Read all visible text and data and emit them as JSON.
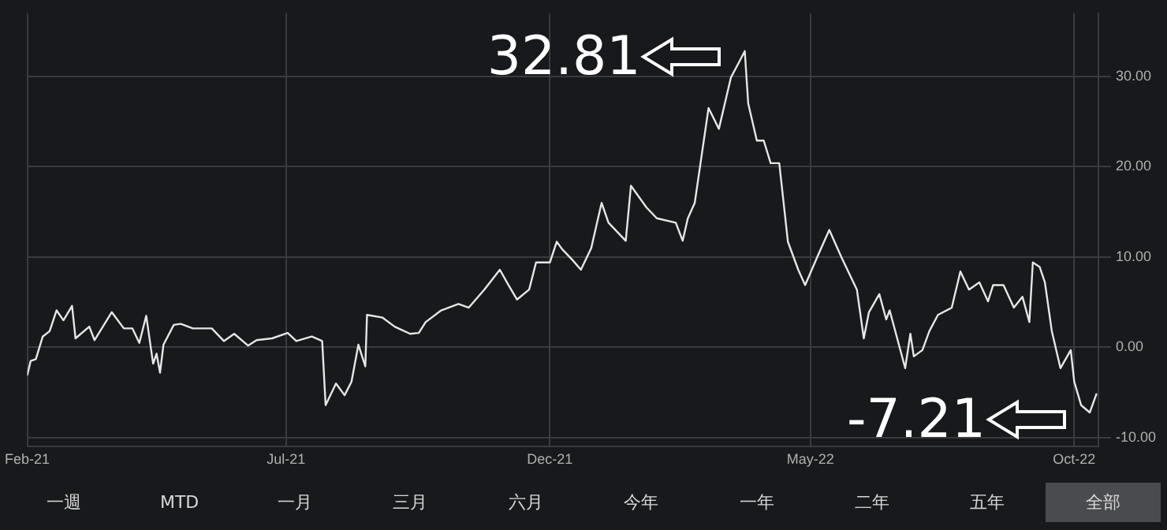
{
  "chart_data": {
    "type": "line",
    "x": [
      "2021-02-01",
      "2021-02-03",
      "2021-02-06",
      "2021-02-10",
      "2021-02-14",
      "2021-02-18",
      "2021-02-22",
      "2021-02-27",
      "2021-03-01",
      "2021-03-09",
      "2021-03-12",
      "2021-03-22",
      "2021-03-29",
      "2021-04-03",
      "2021-04-07",
      "2021-04-11",
      "2021-04-15",
      "2021-04-17",
      "2021-04-19",
      "2021-04-21",
      "2021-04-27",
      "2021-05-01",
      "2021-05-08",
      "2021-05-19",
      "2021-05-26",
      "2021-06-01",
      "2021-06-09",
      "2021-06-14",
      "2021-06-23",
      "2021-07-02",
      "2021-07-07",
      "2021-07-16",
      "2021-07-22",
      "2021-07-24",
      "2021-07-30",
      "2021-08-04",
      "2021-08-08",
      "2021-08-12",
      "2021-08-16",
      "2021-08-17",
      "2021-08-26",
      "2021-09-02",
      "2021-09-11",
      "2021-09-16",
      "2021-09-20",
      "2021-09-29",
      "2021-10-09",
      "2021-10-15",
      "2021-10-24",
      "2021-11-02",
      "2021-11-07",
      "2021-11-12",
      "2021-11-19",
      "2021-11-23",
      "2021-12-01",
      "2021-12-05",
      "2021-12-08",
      "2021-12-14",
      "2021-12-19",
      "2021-12-25",
      "2021-12-31",
      "2022-01-04",
      "2022-01-14",
      "2022-01-17",
      "2022-01-26",
      "2022-02-01",
      "2022-02-12",
      "2022-02-16",
      "2022-02-19",
      "2022-02-23",
      "2022-03-03",
      "2022-03-09",
      "2022-03-16",
      "2022-03-21",
      "2022-03-24",
      "2022-03-26",
      "2022-03-31",
      "2022-04-04",
      "2022-04-08",
      "2022-04-13",
      "2022-04-18",
      "2022-04-24",
      "2022-04-28",
      "2022-05-05",
      "2022-05-12",
      "2022-05-19",
      "2022-05-28",
      "2022-06-01",
      "2022-06-04",
      "2022-06-10",
      "2022-06-14",
      "2022-06-16",
      "2022-06-25",
      "2022-06-28",
      "2022-06-30",
      "2022-07-05",
      "2022-07-09",
      "2022-07-14",
      "2022-07-22",
      "2022-07-27",
      "2022-08-01",
      "2022-08-07",
      "2022-08-12",
      "2022-08-15",
      "2022-08-21",
      "2022-08-27",
      "2022-09-01",
      "2022-09-05",
      "2022-09-07",
      "2022-09-11",
      "2022-09-14",
      "2022-09-18",
      "2022-09-23",
      "2022-09-29",
      "2022-10-01",
      "2022-10-05",
      "2022-10-10",
      "2022-10-14"
    ],
    "values": [
      -3.1,
      -1.5,
      -1.3,
      1.2,
      1.8,
      4.1,
      3.0,
      4.6,
      1.0,
      2.3,
      0.8,
      3.9,
      2.1,
      2.1,
      0.5,
      3.5,
      -1.8,
      -0.7,
      -2.8,
      0.3,
      2.5,
      2.6,
      2.1,
      2.1,
      0.7,
      1.5,
      0.2,
      0.8,
      1.0,
      1.6,
      0.7,
      1.2,
      0.7,
      -6.4,
      -4.0,
      -5.3,
      -3.8,
      0.3,
      -2.1,
      3.6,
      3.3,
      2.3,
      1.5,
      1.6,
      2.8,
      4.1,
      4.8,
      4.4,
      6.4,
      8.6,
      6.9,
      5.3,
      6.4,
      9.4,
      9.4,
      11.7,
      10.9,
      9.7,
      8.6,
      11.0,
      16.0,
      13.8,
      11.8,
      17.9,
      15.5,
      14.3,
      13.8,
      11.8,
      14.3,
      16.0,
      26.5,
      24.2,
      29.9,
      31.7,
      32.81,
      27.0,
      22.9,
      22.9,
      20.4,
      20.4,
      11.7,
      8.6,
      6.9,
      10.0,
      13.0,
      10.0,
      6.4,
      1.0,
      3.9,
      5.9,
      3.1,
      4.1,
      -2.3,
      1.5,
      -1.0,
      -0.3,
      1.8,
      3.6,
      4.4,
      8.4,
      6.4,
      7.2,
      5.1,
      6.9,
      6.9,
      4.4,
      5.6,
      2.8,
      9.4,
      8.9,
      7.2,
      1.8,
      -2.3,
      -0.3,
      -3.8,
      -6.4,
      -7.21,
      -5.1
    ],
    "color": "#e6e6e6",
    "xlim": [
      "2021-02-01",
      "2022-10-15"
    ],
    "xticks": [
      {
        "value": "2021-02-01",
        "label": "Feb-21"
      },
      {
        "value": "2021-07-01",
        "label": "Jul-21"
      },
      {
        "value": "2021-12-01",
        "label": "Dec-21"
      },
      {
        "value": "2022-05-01",
        "label": "May-22"
      },
      {
        "value": "2022-10-01",
        "label": "Oct-22"
      }
    ],
    "ylim": [
      -11,
      37
    ],
    "yticks": [
      {
        "value": -10,
        "label": "-10.00"
      },
      {
        "value": 0,
        "label": "0.00"
      },
      {
        "value": 10,
        "label": "10.00"
      },
      {
        "value": 20,
        "label": "20.00"
      },
      {
        "value": 30,
        "label": "30.00"
      }
    ],
    "grid": true,
    "legend": false,
    "marker": "none",
    "line_style": "solid",
    "annotations": [
      {
        "text": "32.81",
        "x": "2022-03-24",
        "y": 32.81
      },
      {
        "text": "-7.21",
        "x": "2022-10-10",
        "y": -7.21
      },
      "一週",
      "MTD",
      "一月",
      "三月",
      "六月",
      "今年",
      "一年",
      "二年",
      "五年",
      "全部"
    ]
  }
}
